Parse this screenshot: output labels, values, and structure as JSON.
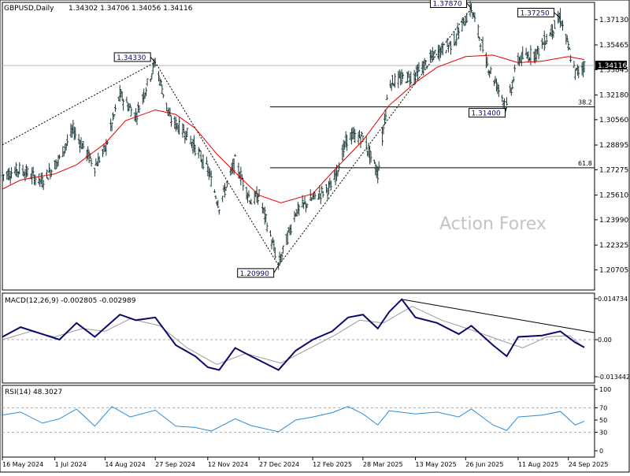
{
  "header": {
    "symbol_label": "GBPUSD,Daily",
    "ohlc": "1.34302 1.34706 1.34056 1.34116",
    "macd_label": "MACD(12,26,9) -0.002805 -0.002989",
    "rsi_label": "RSI(14) 48.3027",
    "watermark": "Action Forex"
  },
  "colors": {
    "candle": "#1e3a3a",
    "ma": "#e00000",
    "macd": "#0a0a6e",
    "signal": "#9a9a9a",
    "rsi": "#2a8cd8",
    "trendline": "#000000",
    "grid": "#000000"
  },
  "chart_data": [
    {
      "type": "candlestick",
      "panel": "price",
      "title": "GBPUSD,Daily",
      "last": 1.34116,
      "ylim": [
        1.2,
        1.38
      ],
      "price_ticks": [
        "1.37130",
        "1.35465",
        "1.33845",
        "1.32180",
        "1.30560",
        "1.28895",
        "1.27275",
        "1.25610",
        "1.23990",
        "1.22325",
        "1.20705"
      ],
      "last_label": "1.34116",
      "fib_levels": [
        {
          "label": "38.2",
          "value": 1.314
        },
        {
          "label": "61.8",
          "value": 1.274
        }
      ],
      "annotations": [
        {
          "label": "1.34330",
          "value": 1.3433,
          "date": "2024-09-27"
        },
        {
          "label": "1.20990",
          "value": 1.2099,
          "date": "2025-01-13"
        },
        {
          "label": "1.37870",
          "value": 1.3787,
          "date": "2025-07-01"
        },
        {
          "label": "1.37250",
          "value": 1.3725,
          "date": "2025-09-17"
        },
        {
          "label": "1.31400",
          "value": 1.314,
          "date": "2025-08-01"
        }
      ],
      "ma_series_name": "",
      "ma_points": [
        [
          "2024-05-16",
          1.26
        ],
        [
          "2024-06-01",
          1.266
        ],
        [
          "2024-07-01",
          1.27
        ],
        [
          "2024-07-20",
          1.276
        ],
        [
          "2024-08-14",
          1.29
        ],
        [
          "2024-09-01",
          1.305
        ],
        [
          "2024-09-27",
          1.312
        ],
        [
          "2024-10-15",
          1.309
        ],
        [
          "2024-11-01",
          1.3
        ],
        [
          "2024-11-20",
          1.283
        ],
        [
          "2024-12-10",
          1.268
        ],
        [
          "2024-12-27",
          1.256
        ],
        [
          "2025-01-15",
          1.251
        ],
        [
          "2025-02-12",
          1.257
        ],
        [
          "2025-03-01",
          1.271
        ],
        [
          "2025-03-28",
          1.292
        ],
        [
          "2025-04-20",
          1.315
        ],
        [
          "2025-05-13",
          1.33
        ],
        [
          "2025-06-01",
          1.34
        ],
        [
          "2025-06-26",
          1.347
        ],
        [
          "2025-07-20",
          1.348
        ],
        [
          "2025-08-11",
          1.343
        ],
        [
          "2025-09-01",
          1.344
        ],
        [
          "2025-09-24",
          1.347
        ],
        [
          "2025-10-08",
          1.345
        ]
      ],
      "price_points": [
        [
          "2024-05-16",
          1.269
        ],
        [
          "2024-06-01",
          1.273
        ],
        [
          "2024-06-20",
          1.265
        ],
        [
          "2024-07-05",
          1.28
        ],
        [
          "2024-07-17",
          1.299
        ],
        [
          "2024-08-05",
          1.275
        ],
        [
          "2024-08-14",
          1.286
        ],
        [
          "2024-08-27",
          1.322
        ],
        [
          "2024-09-10",
          1.308
        ],
        [
          "2024-09-27",
          1.3433
        ],
        [
          "2024-10-10",
          1.306
        ],
        [
          "2024-10-25",
          1.296
        ],
        [
          "2024-11-12",
          1.273
        ],
        [
          "2024-11-22",
          1.249
        ],
        [
          "2024-12-06",
          1.278
        ],
        [
          "2024-12-20",
          1.252
        ],
        [
          "2024-12-27",
          1.256
        ],
        [
          "2025-01-13",
          1.2099
        ],
        [
          "2025-01-28",
          1.245
        ],
        [
          "2025-02-12",
          1.254
        ],
        [
          "2025-03-01",
          1.262
        ],
        [
          "2025-03-15",
          1.295
        ],
        [
          "2025-03-28",
          1.294
        ],
        [
          "2025-04-10",
          1.27
        ],
        [
          "2025-04-20",
          1.33
        ],
        [
          "2025-05-13",
          1.335
        ],
        [
          "2025-06-01",
          1.35
        ],
        [
          "2025-06-15",
          1.356
        ],
        [
          "2025-07-01",
          1.3787
        ],
        [
          "2025-07-15",
          1.342
        ],
        [
          "2025-08-01",
          1.314
        ],
        [
          "2025-08-11",
          1.345
        ],
        [
          "2025-08-28",
          1.35
        ],
        [
          "2025-09-17",
          1.3725
        ],
        [
          "2025-09-30",
          1.336
        ],
        [
          "2025-10-08",
          1.3412
        ]
      ]
    },
    {
      "type": "line",
      "panel": "macd",
      "title": "MACD(12,26,9) -0.002805 -0.002989",
      "ylim": [
        -0.013442,
        0.014734
      ],
      "ticks": [
        "0.014734",
        "0.00",
        "-0.013442"
      ],
      "series": [
        {
          "name": "",
          "values": [
            [
              "2024-05-16",
              0.001
            ],
            [
              "2024-06-01",
              0.0045
            ],
            [
              "2024-06-20",
              0.002
            ],
            [
              "2024-07-05",
              0.0
            ],
            [
              "2024-07-20",
              0.006
            ],
            [
              "2024-08-05",
              0.001
            ],
            [
              "2024-08-27",
              0.009
            ],
            [
              "2024-09-10",
              0.007
            ],
            [
              "2024-09-27",
              0.008
            ],
            [
              "2024-10-15",
              -0.002
            ],
            [
              "2024-11-01",
              -0.006
            ],
            [
              "2024-11-12",
              -0.01
            ],
            [
              "2024-11-22",
              -0.011
            ],
            [
              "2024-12-06",
              -0.003
            ],
            [
              "2024-12-20",
              -0.006
            ],
            [
              "2025-01-13",
              -0.011
            ],
            [
              "2025-01-28",
              -0.004
            ],
            [
              "2025-02-12",
              0.0
            ],
            [
              "2025-03-01",
              0.003
            ],
            [
              "2025-03-15",
              0.008
            ],
            [
              "2025-03-28",
              0.009
            ],
            [
              "2025-04-10",
              0.004
            ],
            [
              "2025-04-20",
              0.01
            ],
            [
              "2025-05-01",
              0.0145
            ],
            [
              "2025-05-13",
              0.008
            ],
            [
              "2025-06-01",
              0.006
            ],
            [
              "2025-06-20",
              0.002
            ],
            [
              "2025-07-01",
              0.005
            ],
            [
              "2025-07-20",
              -0.002
            ],
            [
              "2025-08-01",
              -0.006
            ],
            [
              "2025-08-11",
              0.001
            ],
            [
              "2025-09-01",
              0.0015
            ],
            [
              "2025-09-17",
              0.003
            ],
            [
              "2025-09-30",
              -0.001
            ],
            [
              "2025-10-08",
              -0.0028
            ]
          ]
        },
        {
          "name": "",
          "values": [
            [
              "2024-05-16",
              0.0
            ],
            [
              "2024-06-10",
              0.003
            ],
            [
              "2024-07-01",
              0.001
            ],
            [
              "2024-07-25",
              0.004
            ],
            [
              "2024-08-14",
              0.003
            ],
            [
              "2024-09-05",
              0.0075
            ],
            [
              "2024-10-01",
              0.005
            ],
            [
              "2024-10-25",
              -0.003
            ],
            [
              "2024-11-20",
              -0.009
            ],
            [
              "2024-12-15",
              -0.005
            ],
            [
              "2025-01-15",
              -0.0085
            ],
            [
              "2025-02-10",
              -0.003
            ],
            [
              "2025-03-05",
              0.002
            ],
            [
              "2025-03-25",
              0.007
            ],
            [
              "2025-04-15",
              0.006
            ],
            [
              "2025-05-10",
              0.012
            ],
            [
              "2025-06-05",
              0.007
            ],
            [
              "2025-07-01",
              0.0035
            ],
            [
              "2025-07-25",
              0.0
            ],
            [
              "2025-08-15",
              -0.003
            ],
            [
              "2025-09-05",
              0.001
            ],
            [
              "2025-09-25",
              0.0015
            ],
            [
              "2025-10-08",
              -0.003
            ]
          ]
        }
      ],
      "trendline": [
        [
          "2025-05-01",
          0.0145
        ],
        [
          "2025-10-08",
          0.0025
        ]
      ]
    },
    {
      "type": "line",
      "panel": "rsi",
      "title": "RSI(14) 48.3027",
      "ylim": [
        0,
        100
      ],
      "ticks": [
        "100",
        "70",
        "50",
        "30",
        "0"
      ],
      "levels": [
        70,
        30
      ],
      "series": [
        {
          "name": "",
          "values": [
            [
              "2024-05-16",
              58
            ],
            [
              "2024-06-01",
              63
            ],
            [
              "2024-06-20",
              45
            ],
            [
              "2024-07-05",
              52
            ],
            [
              "2024-07-20",
              68
            ],
            [
              "2024-08-05",
              40
            ],
            [
              "2024-08-20",
              72
            ],
            [
              "2024-09-05",
              55
            ],
            [
              "2024-09-27",
              66
            ],
            [
              "2024-10-15",
              40
            ],
            [
              "2024-11-01",
              38
            ],
            [
              "2024-11-15",
              32
            ],
            [
              "2024-12-06",
              52
            ],
            [
              "2024-12-20",
              41
            ],
            [
              "2025-01-13",
              31
            ],
            [
              "2025-01-28",
              50
            ],
            [
              "2025-02-12",
              55
            ],
            [
              "2025-03-01",
              62
            ],
            [
              "2025-03-15",
              72
            ],
            [
              "2025-03-28",
              60
            ],
            [
              "2025-04-10",
              42
            ],
            [
              "2025-04-20",
              65
            ],
            [
              "2025-05-13",
              60
            ],
            [
              "2025-06-01",
              63
            ],
            [
              "2025-06-20",
              55
            ],
            [
              "2025-07-01",
              68
            ],
            [
              "2025-07-20",
              42
            ],
            [
              "2025-08-01",
              33
            ],
            [
              "2025-08-11",
              55
            ],
            [
              "2025-09-01",
              58
            ],
            [
              "2025-09-17",
              64
            ],
            [
              "2025-09-30",
              42
            ],
            [
              "2025-10-08",
              48
            ]
          ]
        }
      ]
    }
  ],
  "date_axis": {
    "labels": [
      "16 May 2024",
      "1 Jul 2024",
      "14 Aug 2024",
      "27 Sep 2024",
      "12 Nov 2024",
      "27 Dec 2024",
      "12 Feb 2025",
      "28 Mar 2025",
      "13 May 2025",
      "26 Jun 2025",
      "11 Aug 2025",
      "24 Sep 2025"
    ],
    "dates": [
      "2024-05-16",
      "2024-07-01",
      "2024-08-14",
      "2024-09-27",
      "2024-11-12",
      "2024-12-27",
      "2025-02-12",
      "2025-03-28",
      "2025-05-13",
      "2025-06-26",
      "2025-08-11",
      "2025-09-24"
    ]
  }
}
